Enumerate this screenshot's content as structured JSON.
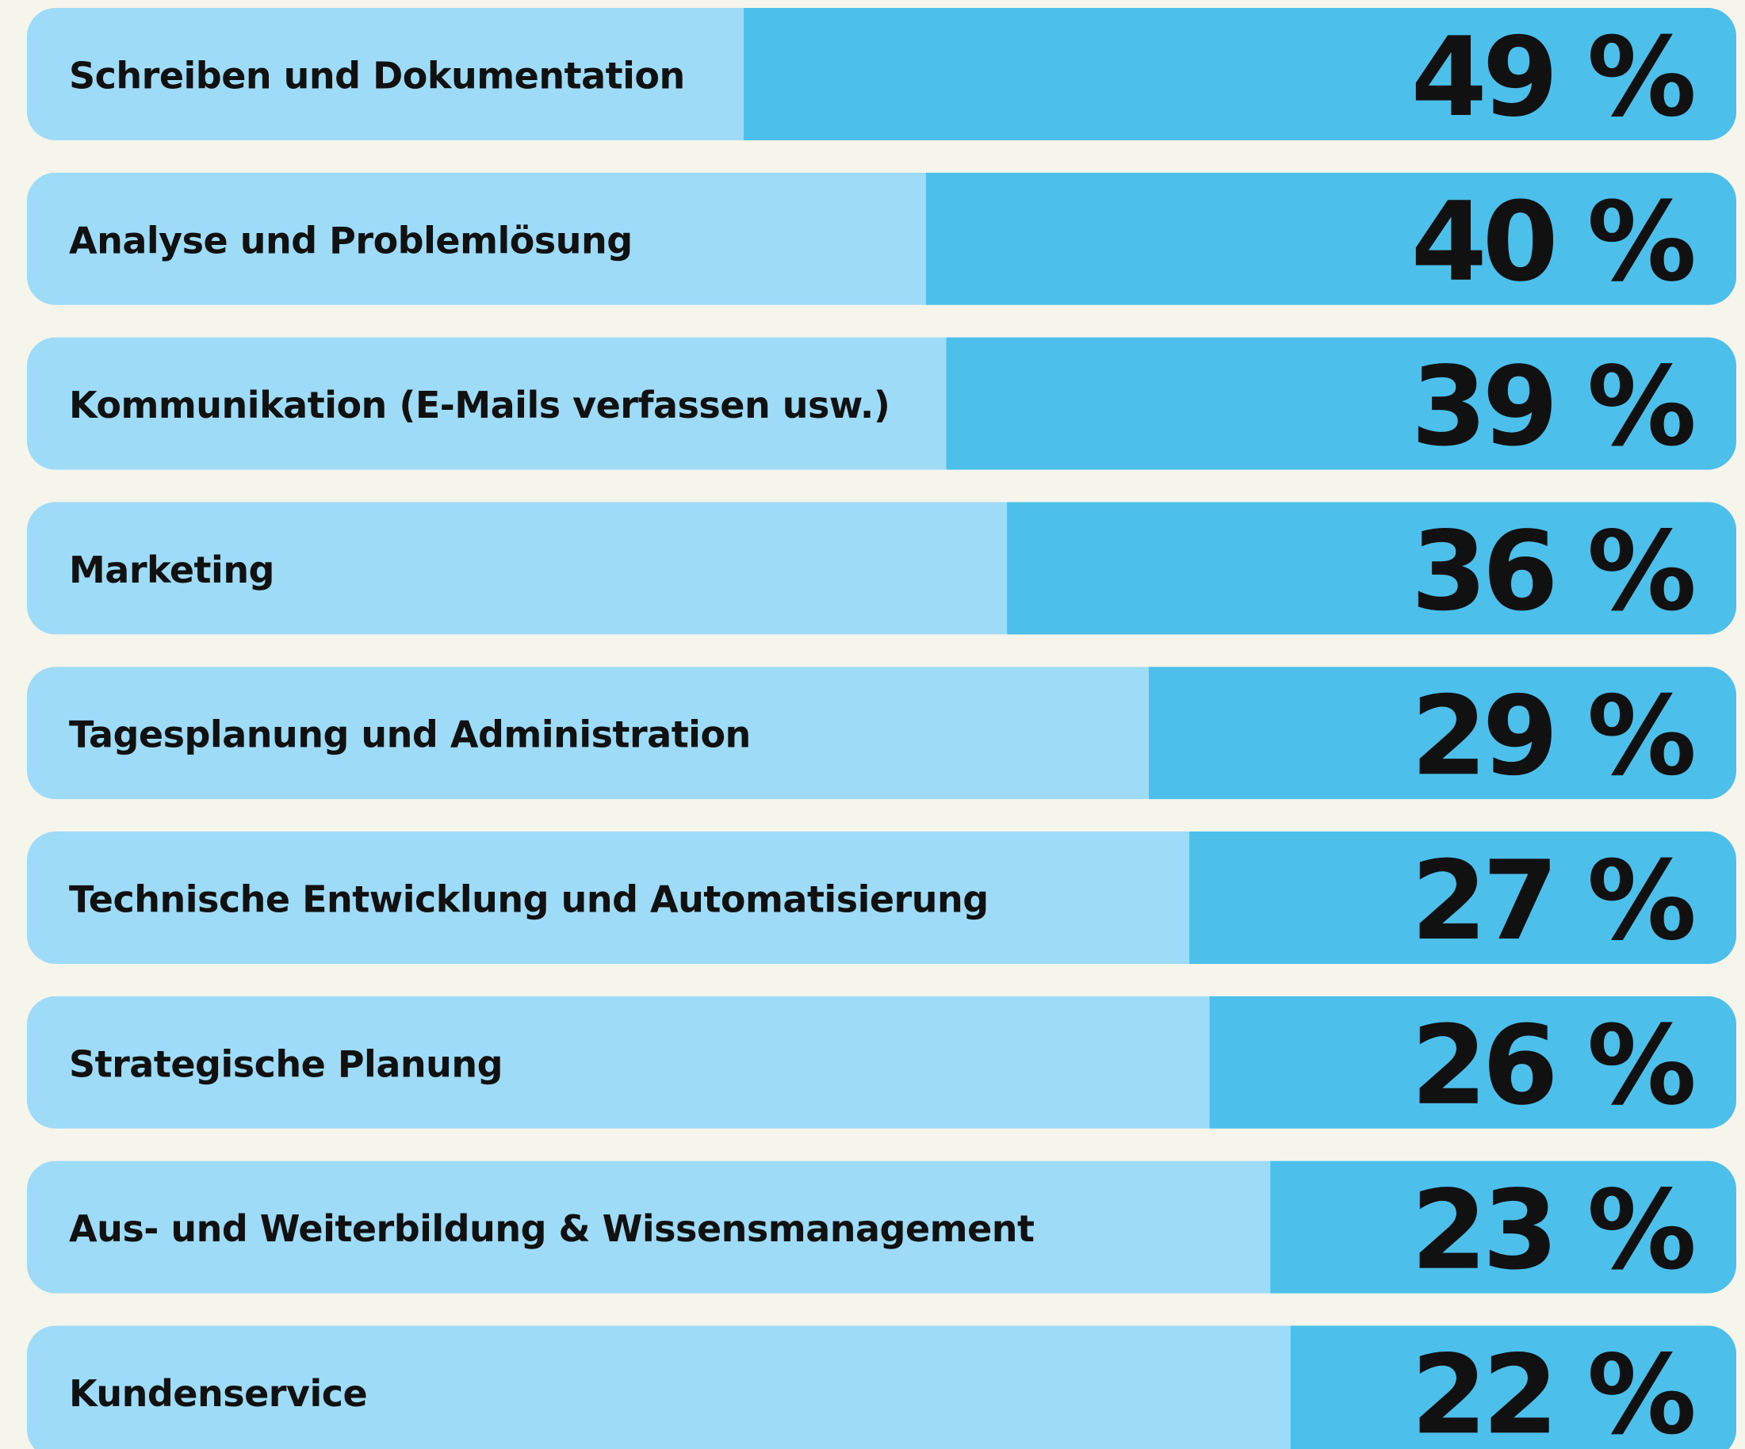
{
  "chart_data": {
    "type": "bar",
    "orientation": "horizontal",
    "categories": [
      "Schreiben und Dokumentation",
      "Analyse und Problemlösung",
      "Kommunikation (E-Mails verfassen usw.)",
      "Marketing",
      "Tagesplanung und Administration",
      "Technische Entwicklung und Automatisierung",
      "Strategische Planung",
      "Aus- und Weiterbildung & Wissensmanagement",
      "Kundenservice"
    ],
    "values": [
      49,
      40,
      39,
      36,
      29,
      27,
      26,
      23,
      22
    ],
    "value_labels": [
      "49 %",
      "40 %",
      "39 %",
      "36 %",
      "29 %",
      "27 %",
      "26 %",
      "23 %",
      "22 %"
    ],
    "color": "#4cbfeb",
    "track_color": "#9ddbf6"
  }
}
